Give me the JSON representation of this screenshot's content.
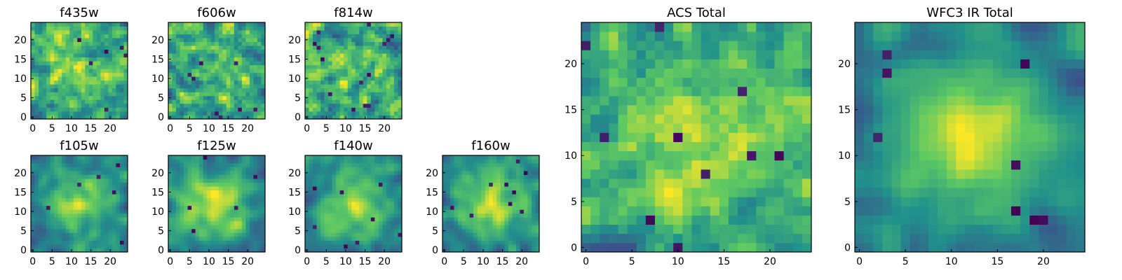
{
  "figure": {
    "colormap": "viridis",
    "colormap_stops": [
      "#440154",
      "#3b528b",
      "#21918c",
      "#5ec962",
      "#fde725"
    ]
  },
  "chart_data": [
    {
      "type": "heatmap",
      "title": "f435w",
      "grid_size": 25,
      "xticks": [
        0,
        5,
        10,
        15,
        20
      ],
      "yticks": [
        0,
        5,
        10,
        15,
        20
      ],
      "xlim": [
        0,
        25
      ],
      "ylim": [
        0,
        25
      ],
      "seed": 11,
      "smooth": 0.25,
      "blob": 0.25,
      "dark_spots": 6
    },
    {
      "type": "heatmap",
      "title": "f606w",
      "grid_size": 25,
      "xticks": [
        0,
        5,
        10,
        15,
        20
      ],
      "yticks": [
        0,
        5,
        10,
        15,
        20
      ],
      "xlim": [
        0,
        25
      ],
      "ylim": [
        0,
        25
      ],
      "seed": 23,
      "smooth": 0.25,
      "blob": 0.15,
      "dark_spots": 8
    },
    {
      "type": "heatmap",
      "title": "f814w",
      "grid_size": 25,
      "xticks": [
        0,
        5,
        10,
        15,
        20
      ],
      "yticks": [
        0,
        5,
        10,
        15,
        20
      ],
      "xlim": [
        0,
        25
      ],
      "ylim": [
        0,
        25
      ],
      "seed": 37,
      "smooth": 0.25,
      "blob": 0.1,
      "dark_spots": 14
    },
    {
      "type": "heatmap",
      "title": "f105w",
      "grid_size": 25,
      "xticks": [
        0,
        5,
        10,
        15,
        20
      ],
      "yticks": [
        0,
        5,
        10,
        15,
        20
      ],
      "xlim": [
        0,
        25
      ],
      "ylim": [
        0,
        25
      ],
      "seed": 41,
      "smooth": 0.6,
      "blob": 0.5,
      "dark_spots": 6
    },
    {
      "type": "heatmap",
      "title": "f125w",
      "grid_size": 25,
      "xticks": [
        0,
        5,
        10,
        15,
        20
      ],
      "yticks": [
        0,
        5,
        10,
        15,
        20
      ],
      "xlim": [
        0,
        25
      ],
      "ylim": [
        0,
        25
      ],
      "seed": 53,
      "smooth": 0.6,
      "blob": 0.55,
      "dark_spots": 5
    },
    {
      "type": "heatmap",
      "title": "f140w",
      "grid_size": 25,
      "xticks": [
        0,
        5,
        10,
        15,
        20
      ],
      "yticks": [
        0,
        5,
        10,
        15,
        20
      ],
      "xlim": [
        0,
        25
      ],
      "ylim": [
        0,
        25
      ],
      "seed": 67,
      "smooth": 0.6,
      "blob": 0.5,
      "dark_spots": 8
    },
    {
      "type": "heatmap",
      "title": "f160w",
      "grid_size": 25,
      "xticks": [
        0,
        5,
        10,
        15,
        20
      ],
      "yticks": [
        0,
        5,
        10,
        15,
        20
      ],
      "xlim": [
        0,
        25
      ],
      "ylim": [
        0,
        25
      ],
      "seed": 79,
      "smooth": 0.6,
      "blob": 0.6,
      "dark_spots": 9
    },
    {
      "type": "heatmap",
      "title": "ACS Total",
      "grid_size": 25,
      "xticks": [
        0,
        5,
        10,
        15,
        20
      ],
      "yticks": [
        0,
        5,
        10,
        15,
        20
      ],
      "xlim": [
        0,
        25
      ],
      "ylim": [
        0,
        25
      ],
      "seed": 97,
      "smooth": 0.3,
      "blob": 0.3,
      "dark_spots": 10
    },
    {
      "type": "heatmap",
      "title": "WFC3 IR Total",
      "grid_size": 25,
      "xticks": [
        0,
        5,
        10,
        15,
        20
      ],
      "yticks": [
        0,
        5,
        10,
        15,
        20
      ],
      "xlim": [
        0,
        25
      ],
      "ylim": [
        0,
        25
      ],
      "seed": 113,
      "smooth": 0.7,
      "blob": 0.75,
      "dark_spots": 8
    }
  ]
}
